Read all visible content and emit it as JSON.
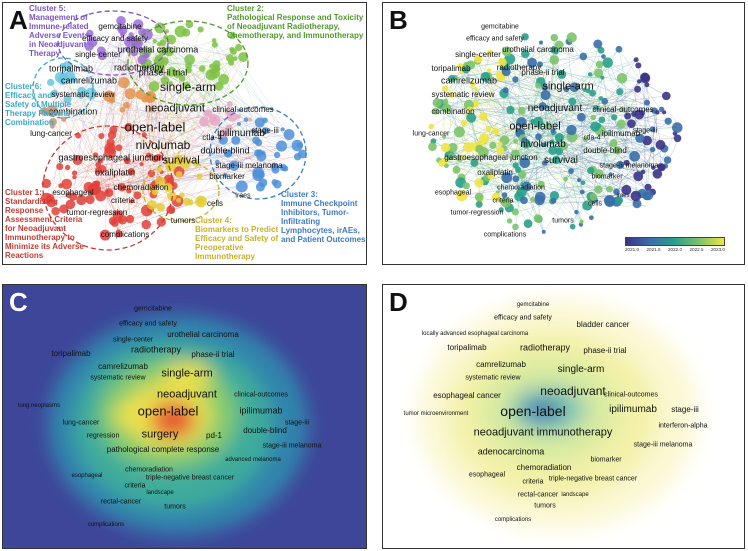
{
  "panels": {
    "A": {
      "label": "A",
      "keywords": [
        {
          "text": "gemcitabine",
          "size": 8
        },
        {
          "text": "efficacy and safety",
          "size": 8
        },
        {
          "text": "urothelial carcinoma",
          "size": 9
        },
        {
          "text": "single-center",
          "size": 8
        },
        {
          "text": "toripalimab",
          "size": 9
        },
        {
          "text": "radiotherapy",
          "size": 9
        },
        {
          "text": "phase-ii trial",
          "size": 9
        },
        {
          "text": "camrelizumab",
          "size": 9
        },
        {
          "text": "systematic review",
          "size": 8
        },
        {
          "text": "single-arm",
          "size": 12
        },
        {
          "text": "neoadjuvant",
          "size": 11
        },
        {
          "text": "clinical-outcomes",
          "size": 8
        },
        {
          "text": "combination",
          "size": 9
        },
        {
          "text": "open-label",
          "size": 13
        },
        {
          "text": "lung-cancer",
          "size": 8
        },
        {
          "text": "nivolumab",
          "size": 12
        },
        {
          "text": "ipilimumab",
          "size": 10
        },
        {
          "text": "stage-iii",
          "size": 8
        },
        {
          "text": "ctla-4",
          "size": 8
        },
        {
          "text": "double-blind",
          "size": 9
        },
        {
          "text": "gastroesophageal junction",
          "size": 9
        },
        {
          "text": "survival",
          "size": 11
        },
        {
          "text": "stage-iii melanoma",
          "size": 8
        },
        {
          "text": "oxaliplatin",
          "size": 9
        },
        {
          "text": "biomarker",
          "size": 8
        },
        {
          "text": "chemoradiation",
          "size": 8
        },
        {
          "text": "esophageal",
          "size": 8
        },
        {
          "text": "criteria",
          "size": 8
        },
        {
          "text": "iraes",
          "size": 7
        },
        {
          "text": "tumor-regression",
          "size": 8
        },
        {
          "text": "cells",
          "size": 8
        },
        {
          "text": "tumors",
          "size": 8
        },
        {
          "text": "complications",
          "size": 8
        }
      ],
      "annotations": [
        {
          "text": "Cluster 5:\nManagement of\nImmune-related\nAdverse Events\nin Neoadjuvant\nTherapy",
          "color": "#7b55c6"
        },
        {
          "text": "Cluster 2:\nPathological Response and Toxicity\nof Neoadjuvant Radiotherapy,\nChemotherapy, and Immunotherapy",
          "color": "#4f9b2b"
        },
        {
          "text": "Cluster 6:\nEfficacy and\nSafety of Multiple\nTherapy Patterns\nCombination",
          "color": "#3aa8c8"
        },
        {
          "text": "Cluster 1:\nStandardizing\nResponse\nAssessment Criteria\nfor Neoadjuvant\nImmunotherapy to\nMinimize its Adverse\nReactions",
          "color": "#c63b32"
        },
        {
          "text": "Cluster 4:\nBiomarkers to Predict\nEfficacy and Safety of\nPreoperative\nImmunotherapy",
          "color": "#c9b127"
        },
        {
          "text": "Cluster 3:\nImmune Checkpoint\nInhibitors, Tumor-\nInfiltrating\nLymphocytes, irAEs,\nand Patient Outcomes",
          "color": "#3d7ac7"
        }
      ]
    },
    "B": {
      "label": "B",
      "keywords": [
        {
          "text": "gemcitabine",
          "size": 7
        },
        {
          "text": "efficacy and safety",
          "size": 7
        },
        {
          "text": "urothelial carcinoma",
          "size": 8
        },
        {
          "text": "single-center",
          "size": 8
        },
        {
          "text": "toripalimab",
          "size": 8
        },
        {
          "text": "radiotherapy",
          "size": 8
        },
        {
          "text": "phase-ii trial",
          "size": 8
        },
        {
          "text": "camrelizumab",
          "size": 9
        },
        {
          "text": "systematic review",
          "size": 8
        },
        {
          "text": "single-arm",
          "size": 11
        },
        {
          "text": "neoadjuvant",
          "size": 10
        },
        {
          "text": "clinical-outcomes",
          "size": 8
        },
        {
          "text": "combination",
          "size": 8
        },
        {
          "text": "open-label",
          "size": 11
        },
        {
          "text": "lung-cancer",
          "size": 7
        },
        {
          "text": "nivolumab",
          "size": 10
        },
        {
          "text": "ipilimumab",
          "size": 8
        },
        {
          "text": "stage-iii",
          "size": 7
        },
        {
          "text": "ctla-4",
          "size": 7
        },
        {
          "text": "double-blind",
          "size": 8
        },
        {
          "text": "gastroesophageal junction",
          "size": 8
        },
        {
          "text": "survival",
          "size": 10
        },
        {
          "text": "stage-iii melanoma",
          "size": 7
        },
        {
          "text": "oxaliplatin",
          "size": 8
        },
        {
          "text": "biomarker",
          "size": 7
        },
        {
          "text": "chemoradiation",
          "size": 7
        },
        {
          "text": "esophageal",
          "size": 7
        },
        {
          "text": "criteria",
          "size": 7
        },
        {
          "text": "iraes",
          "size": 6
        },
        {
          "text": "tumor-regression",
          "size": 7
        },
        {
          "text": "cells",
          "size": 7
        },
        {
          "text": "tumors",
          "size": 7
        },
        {
          "text": "complications",
          "size": 7
        }
      ],
      "colorbar": {
        "ticks": [
          "2021.0",
          "2021.5",
          "2022.0",
          "2022.5",
          "2023.0"
        ],
        "colors": [
          "#3b3488",
          "#3a6fa8",
          "#2aa08a",
          "#7cc36a",
          "#f0e442"
        ]
      }
    },
    "C": {
      "label": "C",
      "keywords": [
        {
          "text": "gemcitabine",
          "size": 7
        },
        {
          "text": "efficacy and safety",
          "size": 7
        },
        {
          "text": "urothelial carcinoma",
          "size": 8
        },
        {
          "text": "single-center",
          "size": 7
        },
        {
          "text": "toripalimab",
          "size": 8
        },
        {
          "text": "radiotherapy",
          "size": 9
        },
        {
          "text": "phase-ii trial",
          "size": 8
        },
        {
          "text": "camrelizumab",
          "size": 8
        },
        {
          "text": "systematic review",
          "size": 7
        },
        {
          "text": "single-arm",
          "size": 11
        },
        {
          "text": "neoadjuvant",
          "size": 11
        },
        {
          "text": "clinical-outcomes",
          "size": 7
        },
        {
          "text": "lung neoplasms",
          "size": 6
        },
        {
          "text": "open-label",
          "size": 13
        },
        {
          "text": "ipilimumab",
          "size": 9
        },
        {
          "text": "lung-cancer",
          "size": 7
        },
        {
          "text": "stage-iii",
          "size": 7
        },
        {
          "text": "regression",
          "size": 7
        },
        {
          "text": "surgery",
          "size": 11
        },
        {
          "text": "double-blind",
          "size": 8
        },
        {
          "text": "pd-1",
          "size": 8
        },
        {
          "text": "stage-iii melanoma",
          "size": 7
        },
        {
          "text": "pathological complete response",
          "size": 8
        },
        {
          "text": "advanced melanoma",
          "size": 6
        },
        {
          "text": "chemoradiation",
          "size": 7
        },
        {
          "text": "esophageal",
          "size": 6
        },
        {
          "text": "triple-negative breast cancer",
          "size": 7
        },
        {
          "text": "criteria",
          "size": 7
        },
        {
          "text": "landscape",
          "size": 6
        },
        {
          "text": "rectal-cancer",
          "size": 7
        },
        {
          "text": "tumors",
          "size": 7
        },
        {
          "text": "complications",
          "size": 6
        }
      ]
    },
    "D": {
      "label": "D",
      "keywords": [
        {
          "text": "gemcitabine",
          "size": 6
        },
        {
          "text": "efficacy and safety",
          "size": 7
        },
        {
          "text": "bladder cancer",
          "size": 8
        },
        {
          "text": "locally advanced esophageal carcinoma",
          "size": 6
        },
        {
          "text": "toripalimab",
          "size": 8
        },
        {
          "text": "radiotherapy",
          "size": 9
        },
        {
          "text": "phase-ii trial",
          "size": 8
        },
        {
          "text": "camrelizumab",
          "size": 8
        },
        {
          "text": "systematic review",
          "size": 7
        },
        {
          "text": "single-arm",
          "size": 10
        },
        {
          "text": "esophageal cancer",
          "size": 8
        },
        {
          "text": "neoadjuvant",
          "size": 12
        },
        {
          "text": "clinical-outcomes",
          "size": 7
        },
        {
          "text": "tumor microenvironment",
          "size": 6
        },
        {
          "text": "open-label",
          "size": 14
        },
        {
          "text": "ipilimumab",
          "size": 10
        },
        {
          "text": "stage-iii",
          "size": 8
        },
        {
          "text": "interferon-alpha",
          "size": 7
        },
        {
          "text": "neoadjuvant immunotherapy",
          "size": 11
        },
        {
          "text": "stage-iii melanoma",
          "size": 7
        },
        {
          "text": "adenocarcinoma",
          "size": 9
        },
        {
          "text": "biomarker",
          "size": 7
        },
        {
          "text": "chemoradiation",
          "size": 8
        },
        {
          "text": "esophageal",
          "size": 7
        },
        {
          "text": "criteria",
          "size": 7
        },
        {
          "text": "triple-negative breast cancer",
          "size": 7
        },
        {
          "text": "rectal-cancer",
          "size": 7
        },
        {
          "text": "landscape",
          "size": 6
        },
        {
          "text": "tumors",
          "size": 7
        },
        {
          "text": "complications",
          "size": 6
        }
      ]
    }
  }
}
